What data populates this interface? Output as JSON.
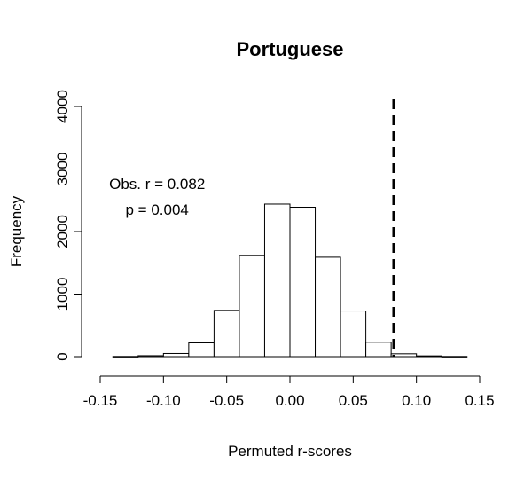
{
  "chart_data": {
    "type": "bar",
    "title": "Portuguese",
    "xlabel": "Permuted r-scores",
    "ylabel": "Frequency",
    "xlim": [
      -0.15,
      0.15
    ],
    "ylim": [
      0,
      4000
    ],
    "x_ticks": [
      -0.15,
      -0.1,
      -0.05,
      0.0,
      0.05,
      0.1,
      0.15
    ],
    "x_tick_labels": [
      "-0.15",
      "-0.10",
      "-0.05",
      "0.00",
      "0.05",
      "0.10",
      "0.15"
    ],
    "y_ticks": [
      0,
      1000,
      2000,
      3000,
      4000
    ],
    "y_tick_labels": [
      "0",
      "1000",
      "2000",
      "3000",
      "4000"
    ],
    "bin_width": 0.02,
    "bins": [
      {
        "x0": -0.14,
        "x1": -0.12,
        "count": 3
      },
      {
        "x0": -0.12,
        "x1": -0.1,
        "count": 15
      },
      {
        "x0": -0.1,
        "x1": -0.08,
        "count": 50
      },
      {
        "x0": -0.08,
        "x1": -0.06,
        "count": 220
      },
      {
        "x0": -0.06,
        "x1": -0.04,
        "count": 740
      },
      {
        "x0": -0.04,
        "x1": -0.02,
        "count": 1620
      },
      {
        "x0": -0.02,
        "x1": 0.0,
        "count": 2440
      },
      {
        "x0": 0.0,
        "x1": 0.02,
        "count": 2390
      },
      {
        "x0": 0.02,
        "x1": 0.04,
        "count": 1590
      },
      {
        "x0": 0.04,
        "x1": 0.06,
        "count": 730
      },
      {
        "x0": 0.06,
        "x1": 0.08,
        "count": 230
      },
      {
        "x0": 0.08,
        "x1": 0.1,
        "count": 45
      },
      {
        "x0": 0.1,
        "x1": 0.12,
        "count": 12
      },
      {
        "x0": 0.12,
        "x1": 0.14,
        "count": 3
      }
    ],
    "observed_line": {
      "x": 0.082,
      "style": "dashed"
    },
    "annotation": {
      "line1": "Obs. r = 0.082",
      "line2": "p = 0.004",
      "x": -0.105,
      "y1": 2680,
      "y2": 2270
    },
    "grid": false,
    "legend": "none"
  }
}
